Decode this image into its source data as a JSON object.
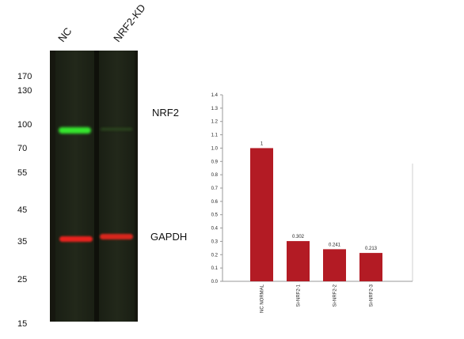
{
  "blot": {
    "lanes": [
      "NC",
      "NRF2-KD"
    ],
    "markers": [
      "170",
      "130",
      "100",
      "70",
      "55",
      "45",
      "35",
      "25",
      "15"
    ],
    "band_labels": [
      "NRF2",
      "GAPDH"
    ],
    "colors": {
      "background": "#1c1c14",
      "nrf2_band": "#35e62f",
      "gapdh_band": "#e8231c"
    }
  },
  "chart_data": {
    "type": "bar",
    "categories": [
      "NC NORMAL",
      "Si-NRF2-1",
      "Si-NRF2-2",
      "Si-NRF2-3"
    ],
    "values": [
      1,
      0.302,
      0.241,
      0.213
    ],
    "data_labels": [
      "1",
      "0.302",
      "0.241",
      "0.213"
    ],
    "ylim": [
      0,
      1.4
    ],
    "yticks": [
      "0.0",
      "0.1",
      "0.2",
      "0.3",
      "0.4",
      "0.5",
      "0.6",
      "0.7",
      "0.8",
      "0.9",
      "1.0",
      "1.1",
      "1.2",
      "1.3",
      "1.4"
    ],
    "grid": false,
    "bar_color": "#b31b24",
    "title": "",
    "xlabel": "",
    "ylabel": ""
  }
}
